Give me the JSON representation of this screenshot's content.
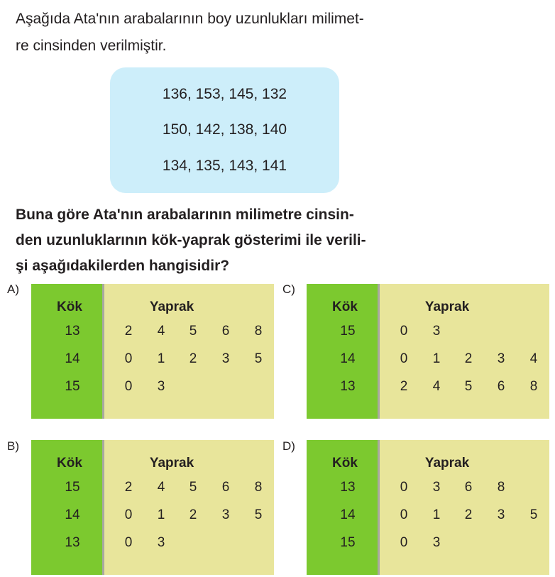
{
  "intro": [
    "Aşağıda Ata'nın arabalarının boy uzunlukları milimet-",
    "re cinsinden verilmiştir."
  ],
  "data_box": [
    "136, 153, 145, 132",
    "150, 142, 138, 140",
    "134, 135, 143, 141"
  ],
  "question": [
    "Buna göre Ata'nın arabalarının milimetre cinsin-",
    "den uzunluklarının kök-yaprak gösterimi ile verili-",
    "şi aşağıdakilerden hangisidir?"
  ],
  "colors": {
    "kok_column": "#7cc92f",
    "yaprak_area": "#e8e59b",
    "data_box": "#cdeefa"
  },
  "options": [
    {
      "label": "A)",
      "kok_header": "Kök",
      "yaprak_header": "Yaprak",
      "rows": [
        {
          "kok": "13",
          "yaprak": [
            "2",
            "4",
            "5",
            "6",
            "8"
          ]
        },
        {
          "kok": "14",
          "yaprak": [
            "0",
            "1",
            "2",
            "3",
            "5"
          ]
        },
        {
          "kok": "15",
          "yaprak": [
            "0",
            "3"
          ]
        }
      ]
    },
    {
      "label": "B)",
      "kok_header": "Kök",
      "yaprak_header": "Yaprak",
      "rows": [
        {
          "kok": "15",
          "yaprak": [
            "2",
            "4",
            "5",
            "6",
            "8"
          ]
        },
        {
          "kok": "14",
          "yaprak": [
            "0",
            "1",
            "2",
            "3",
            "5"
          ]
        },
        {
          "kok": "13",
          "yaprak": [
            "0",
            "3"
          ]
        }
      ]
    },
    {
      "label": "C)",
      "kok_header": "Kök",
      "yaprak_header": "Yaprak",
      "rows": [
        {
          "kok": "15",
          "yaprak": [
            "0",
            "3"
          ]
        },
        {
          "kok": "14",
          "yaprak": [
            "0",
            "1",
            "2",
            "3",
            "4"
          ]
        },
        {
          "kok": "13",
          "yaprak": [
            "2",
            "4",
            "5",
            "6",
            "8"
          ]
        }
      ]
    },
    {
      "label": "D)",
      "kok_header": "Kök",
      "yaprak_header": "Yaprak",
      "rows": [
        {
          "kok": "13",
          "yaprak": [
            "0",
            "3",
            "6",
            "8"
          ]
        },
        {
          "kok": "14",
          "yaprak": [
            "0",
            "1",
            "2",
            "3",
            "5"
          ]
        },
        {
          "kok": "15",
          "yaprak": [
            "0",
            "3"
          ]
        }
      ]
    }
  ]
}
